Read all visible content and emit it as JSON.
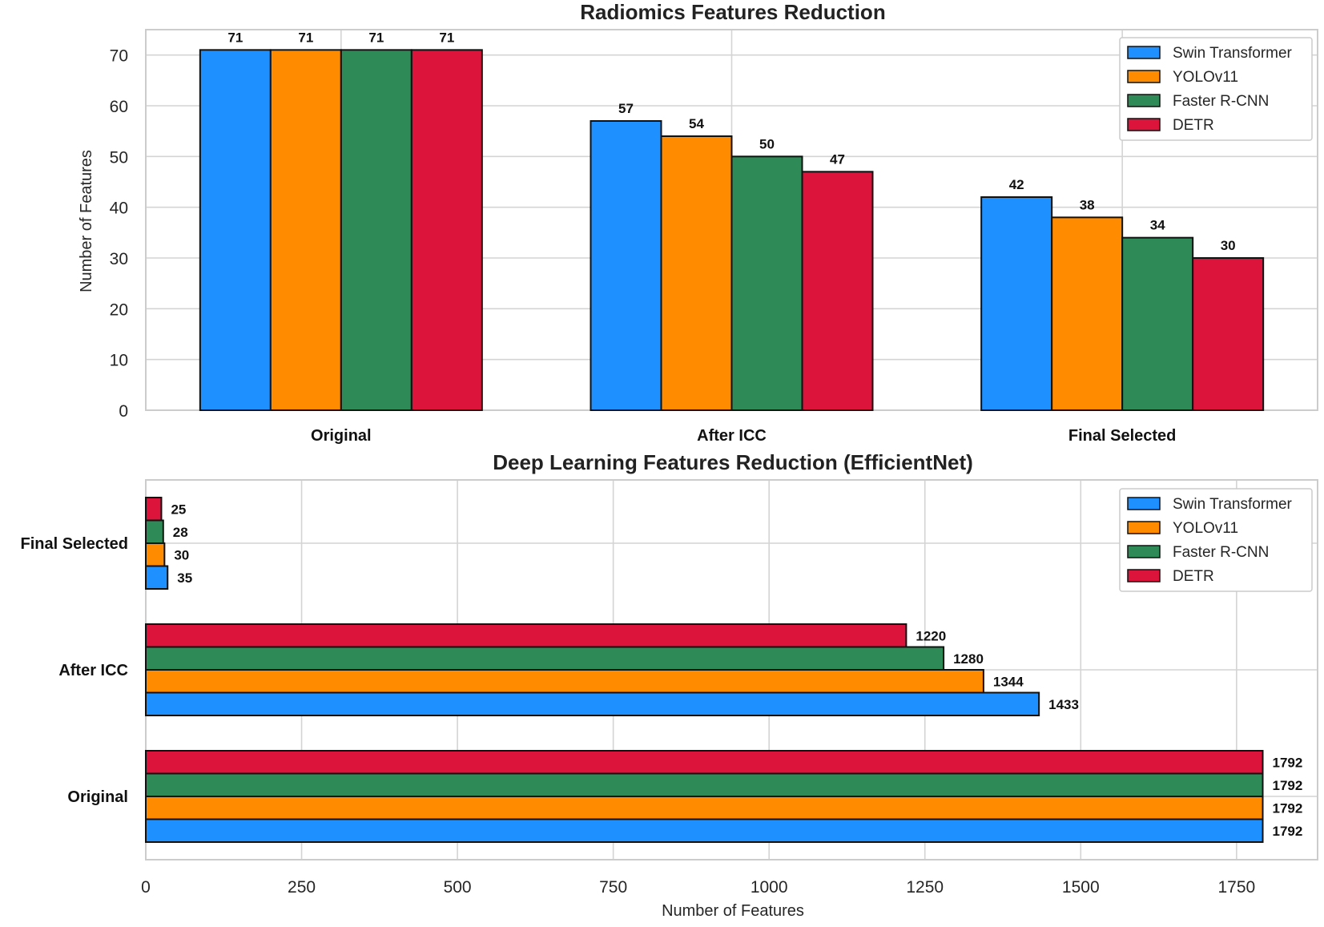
{
  "chart_data": [
    {
      "type": "bar",
      "orientation": "vertical",
      "title": "Radiomics Features Reduction",
      "xlabel": "",
      "ylabel": "Number of Features",
      "categories": [
        "Original",
        "After ICC",
        "Final Selected"
      ],
      "ylim": [
        0,
        75
      ],
      "yticks": [
        "0",
        "10",
        "20",
        "30",
        "40",
        "50",
        "60",
        "70"
      ],
      "grid": true,
      "legend_position": "top-right",
      "series": [
        {
          "name": "Swin Transformer",
          "color": "#1e90ff",
          "values": [
            71,
            57,
            42
          ]
        },
        {
          "name": "YOLOv11",
          "color": "#ff8c00",
          "values": [
            71,
            54,
            38
          ]
        },
        {
          "name": "Faster R-CNN",
          "color": "#2e8b57",
          "values": [
            71,
            50,
            34
          ]
        },
        {
          "name": "DETR",
          "color": "#dc143c",
          "values": [
            71,
            47,
            30
          ]
        }
      ]
    },
    {
      "type": "bar",
      "orientation": "horizontal",
      "title": "Deep Learning Features Reduction (EfficientNet)",
      "xlabel": "Number of Features",
      "ylabel": "",
      "categories": [
        "Original",
        "After ICC",
        "Final Selected"
      ],
      "xlim": [
        0,
        1880
      ],
      "xticks": [
        "0",
        "250",
        "500",
        "750",
        "1000",
        "1250",
        "1500",
        "1750"
      ],
      "grid": true,
      "legend_position": "top-right",
      "series": [
        {
          "name": "Swin Transformer",
          "color": "#1e90ff",
          "values": [
            1792,
            1433,
            35
          ]
        },
        {
          "name": "YOLOv11",
          "color": "#ff8c00",
          "values": [
            1792,
            1344,
            30
          ]
        },
        {
          "name": "Faster R-CNN",
          "color": "#2e8b57",
          "values": [
            1792,
            1280,
            28
          ]
        },
        {
          "name": "DETR",
          "color": "#dc143c",
          "values": [
            1792,
            1220,
            25
          ]
        }
      ]
    }
  ]
}
